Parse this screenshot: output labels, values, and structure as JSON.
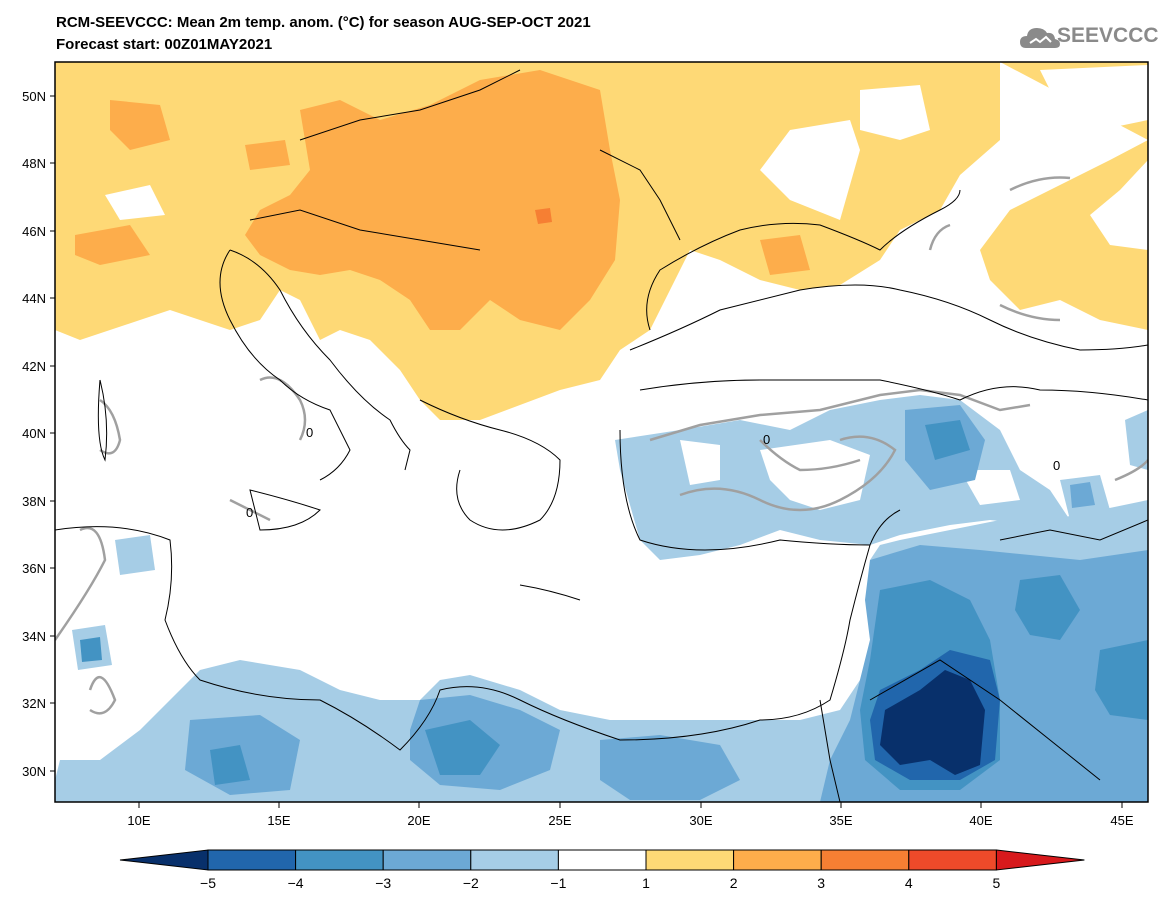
{
  "title": {
    "line1": "RCM-SEEVCCC: Mean 2m temp. anom. (°C) for season AUG-SEP-OCT 2021",
    "line2": "Forecast start: 00Z01MAY2021"
  },
  "logo": {
    "text": "SEEVCCC",
    "icon": "cloud-icon"
  },
  "map": {
    "lat_labels": [
      "50N",
      "48N",
      "46N",
      "44N",
      "42N",
      "40N",
      "38N",
      "36N",
      "34N",
      "32N",
      "30N"
    ],
    "lon_labels": [
      "10E",
      "15E",
      "20E",
      "25E",
      "30E",
      "35E",
      "40E",
      "45E"
    ],
    "contour_label": "0"
  },
  "colorbar": {
    "labels": [
      "−5",
      "−4",
      "−3",
      "−2",
      "−1",
      "1",
      "2",
      "3",
      "4",
      "5"
    ],
    "colors": [
      "#08306b",
      "#2166ac",
      "#4393c3",
      "#6ca9d5",
      "#a6cde6",
      "#ffffff",
      "#fed976",
      "#fdad4b",
      "#f67f33",
      "#ee4a2a",
      "#d7191c"
    ]
  }
}
